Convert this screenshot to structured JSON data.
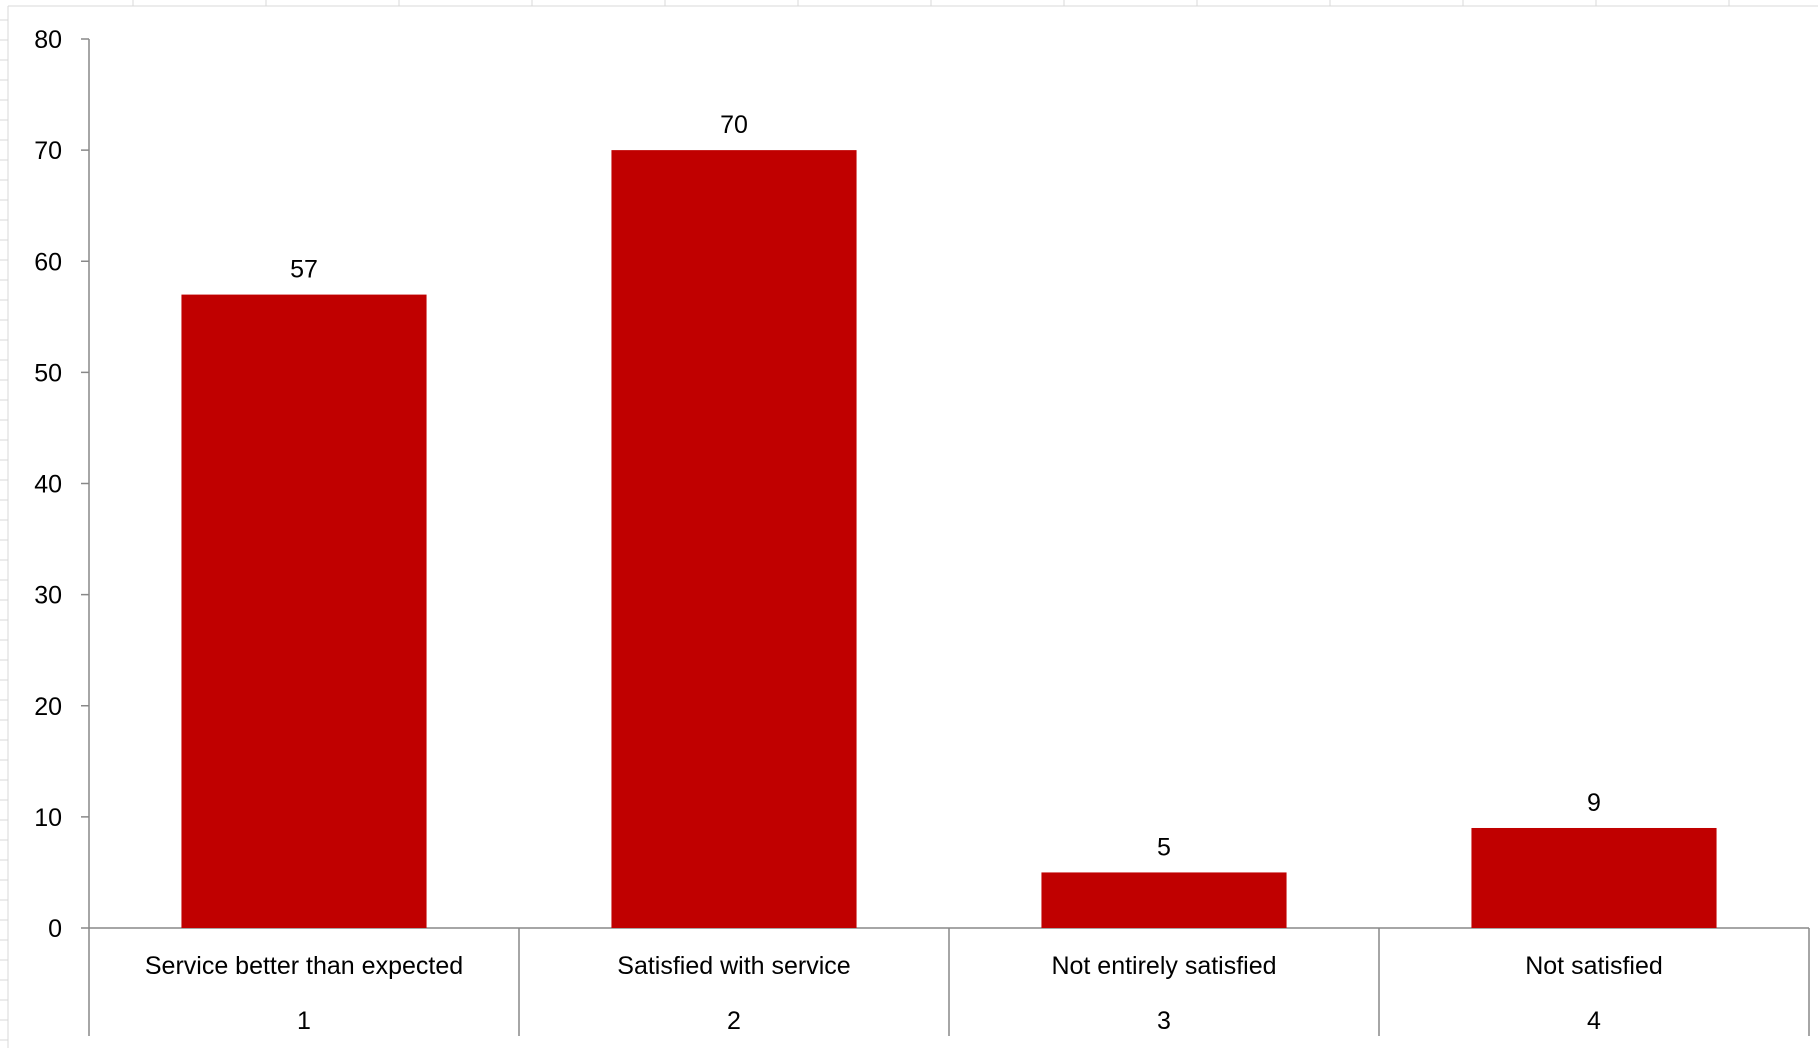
{
  "chart_data": {
    "type": "bar",
    "title": "",
    "xlabel": "",
    "ylabel": "",
    "categories": [
      "Service better than expected",
      "Satisfied with service",
      "Not entirely satisfied",
      "Not satisfied"
    ],
    "category_index": [
      "1",
      "2",
      "3",
      "4"
    ],
    "values": [
      57,
      70,
      5,
      9
    ],
    "data_labels": [
      "57",
      "70",
      "5",
      "9"
    ],
    "ylim": [
      0,
      80
    ],
    "yticks": [
      0,
      10,
      20,
      30,
      40,
      50,
      60,
      70,
      80
    ],
    "ytick_labels": [
      "0",
      "10",
      "20",
      "30",
      "40",
      "50",
      "60",
      "70",
      "80"
    ],
    "grid": false,
    "legend": "none",
    "bar_color": "#C00000",
    "axis_color": "#888888",
    "sheet_gridline_color": "#D9D9D9"
  }
}
